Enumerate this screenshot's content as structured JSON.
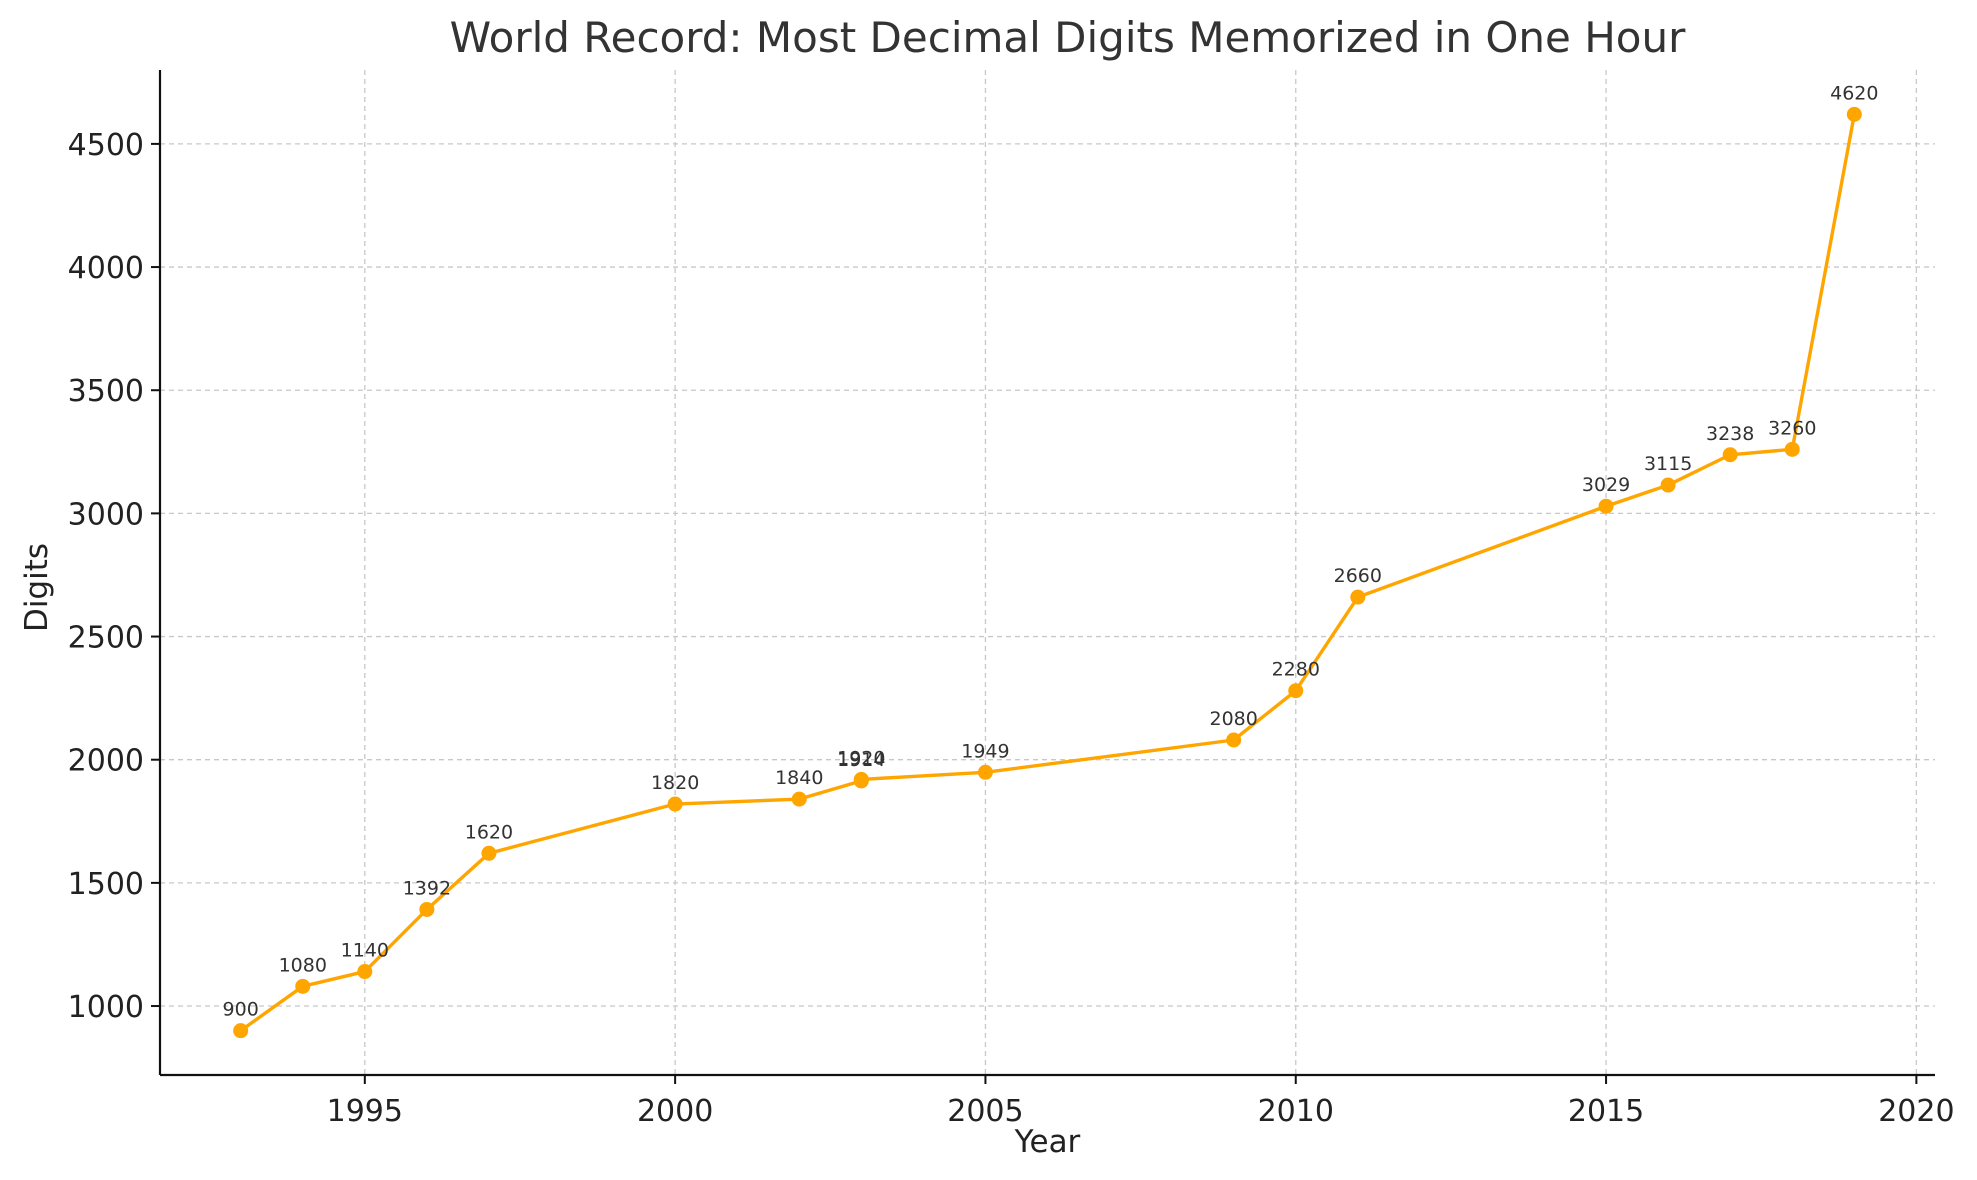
{
  "chart_data": {
    "type": "line",
    "title": "World Record: Most Decimal Digits Memorized in One Hour",
    "xlabel": "Year",
    "ylabel": "Digits",
    "xlim": [
      1991.7,
      2020.3
    ],
    "ylim": [
      720,
      4800
    ],
    "xticks": [
      1995,
      2000,
      2005,
      2010,
      2015,
      2020
    ],
    "yticks": [
      1000,
      1500,
      2000,
      2500,
      3000,
      3500,
      4000,
      4500
    ],
    "grid": true,
    "legend": "none",
    "colors": {
      "line": "#FFA500",
      "marker": "#FFA500",
      "grid": "#c8c8c8",
      "axis": "#111111"
    },
    "series": [
      {
        "x": [
          1993,
          1994,
          1995,
          1996,
          1997,
          2000,
          2002,
          2003,
          2003,
          2005,
          2009,
          2010,
          2011,
          2015,
          2016,
          2017,
          2018,
          2019
        ],
        "values": [
          900,
          1080,
          1140,
          1392,
          1620,
          1820,
          1840,
          1914,
          1920,
          1949,
          2080,
          2280,
          2660,
          3029,
          3115,
          3238,
          3260,
          4620
        ],
        "labels": [
          "900",
          "1080",
          "1140",
          "1392",
          "1620",
          "1820",
          "1840",
          "1914",
          "1920",
          "1949",
          "2080",
          "2280",
          "2660",
          "3029",
          "3115",
          "3238",
          "3260",
          "4620"
        ]
      }
    ]
  }
}
